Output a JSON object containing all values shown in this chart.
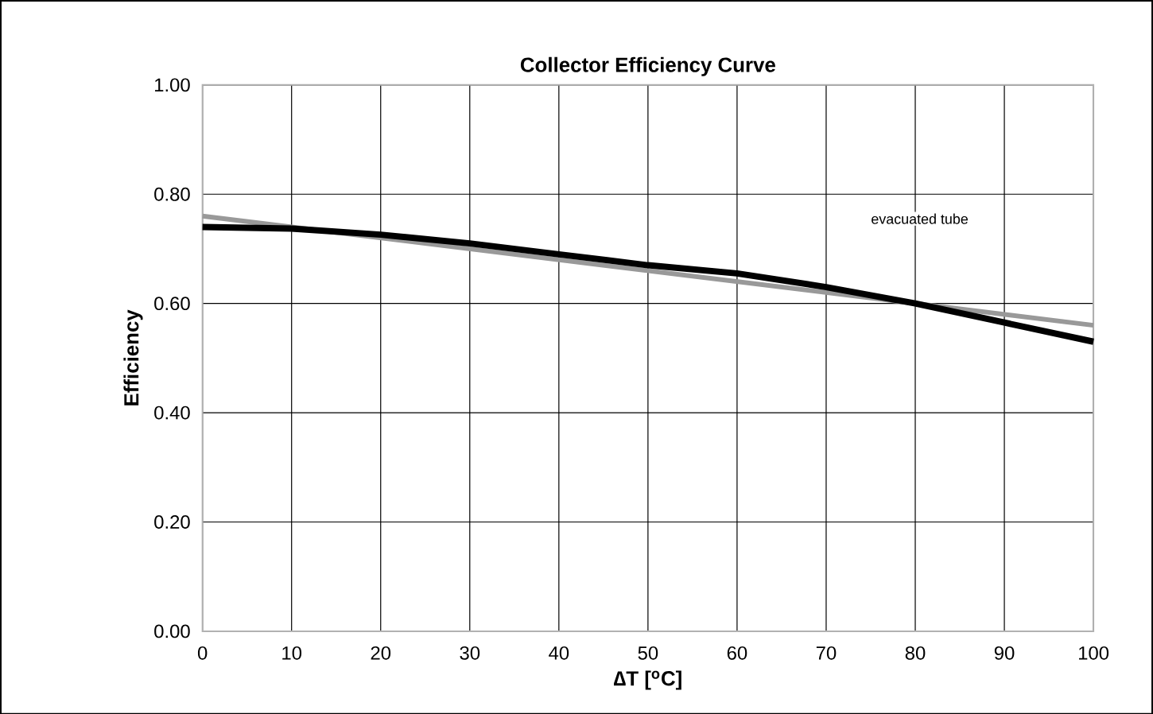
{
  "chart_data": {
    "type": "line",
    "title": "Collector Efficiency Curve",
    "xlabel": "∆T [$^{o}$C]",
    "ylabel": "Efficiency",
    "series": [
      {
        "color": "#999999",
        "x": [
          0,
          100
        ],
        "values": [
          0.76,
          0.56
        ]
      },
      {
        "color": "#000000",
        "x": [
          0,
          10,
          20,
          30,
          40,
          50,
          60,
          70,
          80,
          90,
          100
        ],
        "values": [
          0.74,
          0.737,
          0.726,
          0.71,
          0.69,
          0.67,
          0.655,
          0.63,
          0.6,
          0.565,
          0.53
        ]
      }
    ],
    "annotations": [
      "evacuated tube"
    ],
    "xlim": [
      0,
      100
    ],
    "xticks": [
      0,
      10,
      20,
      30,
      40,
      50,
      60,
      70,
      80,
      90,
      100
    ],
    "ylim": [
      0,
      1
    ],
    "yticks": [
      {
        "value": 0,
        "label": "0.00"
      },
      {
        "value": 0.2,
        "label": "0.20"
      },
      {
        "value": 0.4,
        "label": "0.40"
      },
      {
        "value": 0.6,
        "label": "0.60"
      },
      {
        "value": 0.8,
        "label": "0.80"
      },
      {
        "value": 1,
        "label": "1.00"
      }
    ],
    "grid": true,
    "marker": "none",
    "line_style": "solid"
  }
}
